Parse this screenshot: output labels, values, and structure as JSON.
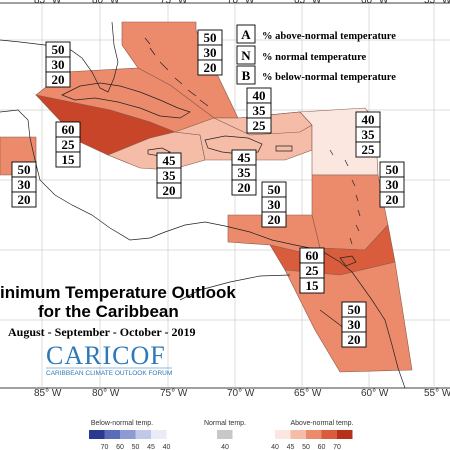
{
  "title_line1": "inimum Temperature Outlook",
  "title_line2": "for the Caribbean",
  "period": "August - September - October - 2019",
  "logo": {
    "name": "CARICOF",
    "subtitle": "CARIBBEAN CLIMATE OUTLOOK FORUM"
  },
  "longitude_labels": [
    "85° W",
    "80° W",
    "75° W",
    "70° W",
    "65° W",
    "60° W",
    "55° W"
  ],
  "legend_key": [
    {
      "letter": "A",
      "text": "% above-normal temperature"
    },
    {
      "letter": "N",
      "text": "% normal temperature"
    },
    {
      "letter": "B",
      "text": "% below-normal temperature"
    }
  ],
  "probability_boxes": [
    {
      "region": "bahamas",
      "values": [
        "50",
        "30",
        "20"
      ]
    },
    {
      "region": "cuba",
      "values": [
        "50",
        "30",
        "20"
      ]
    },
    {
      "region": "belize",
      "values": [
        "60",
        "25",
        "15"
      ]
    },
    {
      "region": "central-america",
      "values": [
        "50",
        "30",
        "20"
      ]
    },
    {
      "region": "jamaica",
      "values": [
        "45",
        "35",
        "20"
      ]
    },
    {
      "region": "hispaniola",
      "values": [
        "45",
        "35",
        "20"
      ]
    },
    {
      "region": "turks-caicos",
      "values": [
        "40",
        "35",
        "25"
      ]
    },
    {
      "region": "leeward-islands",
      "values": [
        "40",
        "35",
        "25"
      ]
    },
    {
      "region": "windward-islands",
      "values": [
        "50",
        "30",
        "20"
      ]
    },
    {
      "region": "abc-islands",
      "values": [
        "50",
        "30",
        "20"
      ]
    },
    {
      "region": "trinidad",
      "values": [
        "60",
        "25",
        "15"
      ]
    },
    {
      "region": "guianas",
      "values": [
        "50",
        "30",
        "20"
      ]
    }
  ],
  "colorbar": {
    "below_title": "Below-normal temp.",
    "normal_title": "Normal temp.",
    "above_title": "Above-normal temp.",
    "below_ticks": [
      "70",
      "60",
      "50",
      "45",
      "40"
    ],
    "normal_ticks": [
      "40"
    ],
    "above_ticks": [
      "40",
      "45",
      "50",
      "60",
      "70"
    ],
    "below_colors": [
      "#2b3a8f",
      "#5a6cb8",
      "#8e9ad3",
      "#c2c8e8",
      "#e9ebf7"
    ],
    "normal_color": "#c8c8c8",
    "above_colors": [
      "#fbe7e0",
      "#f5bca8",
      "#ec8a6c",
      "#d95d3d",
      "#b5311c"
    ]
  }
}
